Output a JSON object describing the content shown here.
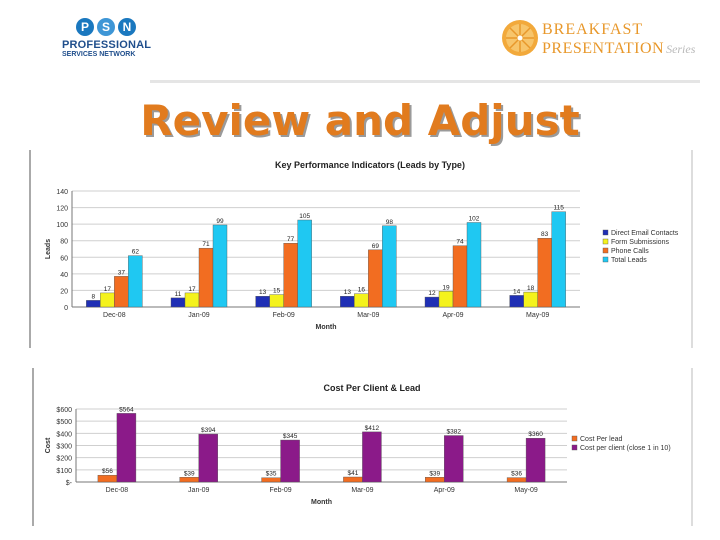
{
  "logo_left": {
    "letters": [
      "P",
      "S",
      "N"
    ],
    "colors": [
      "#1a78bf",
      "#3e96d6",
      "#1a78bf"
    ],
    "line1": "PROFESSIONAL",
    "line2": "SERVICES NETWORK"
  },
  "logo_right": {
    "line1": "BREAKFAST",
    "line2": "PRESENTATION",
    "series": "Series",
    "color": "#e8982b"
  },
  "slide_title": "Review and Adjust",
  "chart_data": [
    {
      "type": "bar",
      "title": "Key Performance Indicators (Leads by Type)",
      "xlabel": "Month",
      "ylabel": "Leads",
      "ylim": [
        0,
        140
      ],
      "yticks": [
        0,
        20,
        40,
        60,
        80,
        100,
        120,
        140
      ],
      "ytick_labels": [
        "0",
        "20",
        "40",
        "60",
        "80",
        "100",
        "120",
        "140"
      ],
      "grid": true,
      "legend_position": "right",
      "categories": [
        "Dec-08",
        "Jan-09",
        "Feb-09",
        "Mar-09",
        "Apr-09",
        "May-09"
      ],
      "series": [
        {
          "name": "Direct Email Contacts",
          "color": "#1f2fb5",
          "values": [
            8,
            11,
            13,
            13,
            12,
            14
          ]
        },
        {
          "name": "Form Submissions",
          "color": "#f4f21c",
          "values": [
            17,
            17,
            15,
            16,
            19,
            18
          ]
        },
        {
          "name": "Phone Calls",
          "color": "#f26d21",
          "values": [
            37,
            71,
            77,
            69,
            74,
            83
          ]
        },
        {
          "name": "Total Leads",
          "color": "#1fc8f2",
          "values": [
            62,
            99,
            105,
            98,
            102,
            115
          ]
        }
      ],
      "data_labels": [
        [
          "8",
          "11",
          "13",
          "13",
          "12",
          "14"
        ],
        [
          "17",
          "17",
          "15",
          "16",
          "19",
          "18"
        ],
        [
          "37",
          "71",
          "77",
          "69",
          "74",
          "83"
        ],
        [
          "62",
          "99",
          "105",
          "98",
          "102",
          "115"
        ]
      ]
    },
    {
      "type": "bar",
      "title": "Cost Per Client & Lead",
      "xlabel": "Month",
      "ylabel": "Cost",
      "ylim": [
        0,
        600
      ],
      "yticks": [
        0,
        100,
        200,
        300,
        400,
        500,
        600
      ],
      "ytick_labels": [
        "$-",
        "$100",
        "$200",
        "$300",
        "$400",
        "$500",
        "$600"
      ],
      "grid": true,
      "legend_position": "right",
      "categories": [
        "Dec-08",
        "Jan-09",
        "Feb-09",
        "Mar-09",
        "Apr-09",
        "May-09"
      ],
      "series": [
        {
          "name": "Cost Per lead",
          "color": "#f26d21",
          "values": [
            56,
            39,
            35,
            41,
            39,
            36
          ]
        },
        {
          "name": "Cost per client (close 1 in 10)",
          "color": "#8b1a89",
          "values": [
            564,
            394,
            345,
            412,
            382,
            360
          ]
        }
      ],
      "data_labels": [
        [
          "$56",
          "$39",
          "$35",
          "$41",
          "$39",
          "$36"
        ],
        [
          "$564",
          "$394",
          "$345",
          "$412",
          "$382",
          "$360"
        ]
      ]
    }
  ]
}
